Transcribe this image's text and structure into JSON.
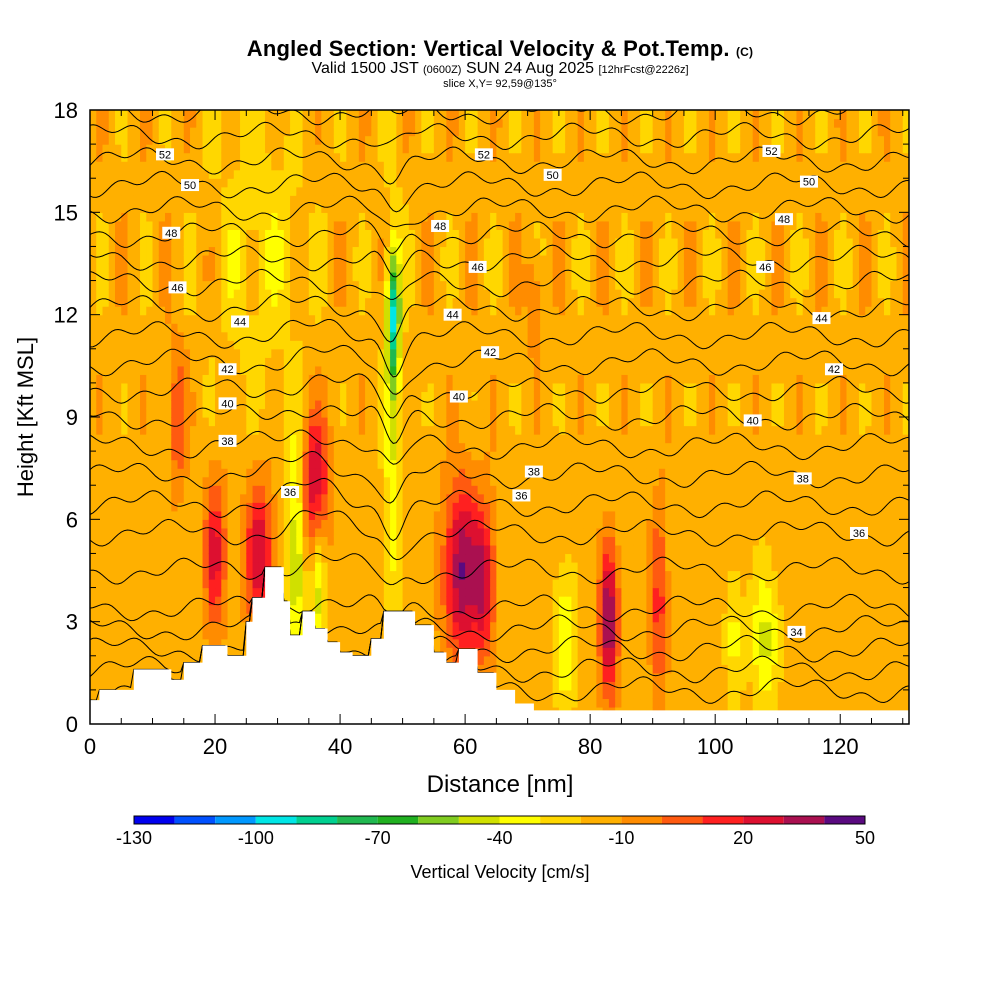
{
  "header": {
    "title_main": "Angled Section: Vertical Velocity & Pot.Temp.",
    "title_unit": "(C)",
    "valid_prefix": "Valid 1500 JST",
    "valid_utc": "(0600Z)",
    "valid_date": "SUN 24 Aug 2025",
    "forecast": "[12hrFcst@2226z]",
    "slice": "slice X,Y= 92,59@135°"
  },
  "chart_data": {
    "type": "heatmap",
    "xlabel": "Distance [nm]",
    "ylabel": "Height [Kft MSL]",
    "xlim": [
      0,
      131
    ],
    "ylim": [
      0,
      18
    ],
    "x_ticks": [
      "0",
      "20",
      "40",
      "60",
      "80",
      "100",
      "120"
    ],
    "x_tick_values": [
      0,
      20,
      40,
      60,
      80,
      100,
      120
    ],
    "y_ticks": [
      "0",
      "3",
      "6",
      "9",
      "12",
      "15",
      "18"
    ],
    "y_tick_values": [
      0,
      3,
      6,
      9,
      12,
      15,
      18
    ],
    "colorbar": {
      "title": "Vertical Velocity [cm/s]",
      "min": -130,
      "max": 50,
      "step": 10,
      "labels": [
        "-130",
        "-100",
        "-70",
        "-40",
        "-10",
        "20",
        "50"
      ],
      "label_values": [
        -130,
        -100,
        -70,
        -40,
        -10,
        20,
        50
      ],
      "colors": [
        "#0000ee",
        "#0050ff",
        "#0098ff",
        "#00e6e6",
        "#00d090",
        "#20b850",
        "#20b020",
        "#80cc20",
        "#d0e000",
        "#ffff00",
        "#ffd700",
        "#ffb000",
        "#ff8c00",
        "#ff5a10",
        "#ff2020",
        "#dd1030",
        "#aa1050",
        "#5a0a80"
      ]
    },
    "background_level": -15,
    "theta_contour_labels": [
      {
        "text": "52",
        "x": 12,
        "y": 16.7
      },
      {
        "text": "52",
        "x": 63,
        "y": 16.7
      },
      {
        "text": "52",
        "x": 109,
        "y": 16.8
      },
      {
        "text": "50",
        "x": 16,
        "y": 15.8
      },
      {
        "text": "50",
        "x": 74,
        "y": 16.1
      },
      {
        "text": "50",
        "x": 115,
        "y": 15.9
      },
      {
        "text": "48",
        "x": 13,
        "y": 14.4
      },
      {
        "text": "48",
        "x": 56,
        "y": 14.6
      },
      {
        "text": "48",
        "x": 111,
        "y": 14.8
      },
      {
        "text": "46",
        "x": 14,
        "y": 12.8
      },
      {
        "text": "46",
        "x": 62,
        "y": 13.4
      },
      {
        "text": "46",
        "x": 108,
        "y": 13.4
      },
      {
        "text": "44",
        "x": 24,
        "y": 11.8
      },
      {
        "text": "44",
        "x": 58,
        "y": 12.0
      },
      {
        "text": "44",
        "x": 117,
        "y": 11.9
      },
      {
        "text": "42",
        "x": 22,
        "y": 10.4
      },
      {
        "text": "42",
        "x": 64,
        "y": 10.9
      },
      {
        "text": "42",
        "x": 119,
        "y": 10.4
      },
      {
        "text": "40",
        "x": 22,
        "y": 9.4
      },
      {
        "text": "40",
        "x": 59,
        "y": 9.6
      },
      {
        "text": "40",
        "x": 106,
        "y": 8.9
      },
      {
        "text": "38",
        "x": 22,
        "y": 8.3
      },
      {
        "text": "38",
        "x": 71,
        "y": 7.4
      },
      {
        "text": "38",
        "x": 114,
        "y": 7.2
      },
      {
        "text": "36",
        "x": 32,
        "y": 6.8
      },
      {
        "text": "36",
        "x": 69,
        "y": 6.7
      },
      {
        "text": "36",
        "x": 123,
        "y": 5.6
      },
      {
        "text": "34",
        "x": 113,
        "y": 2.7
      }
    ],
    "theta_contour_levels": [
      30,
      31,
      32,
      33,
      34,
      35,
      36,
      37,
      38,
      39,
      40,
      41,
      42,
      43,
      44,
      45,
      46,
      47,
      48,
      49,
      50,
      51,
      52,
      53,
      54
    ]
  }
}
